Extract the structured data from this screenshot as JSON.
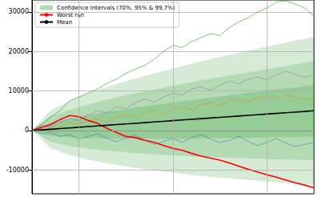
{
  "chart_data": {
    "type": "line",
    "legend": "upper left",
    "grid": true,
    "tick_labels": "y",
    "xlim": [
      0,
      300
    ],
    "xticks": [
      50,
      150,
      250
    ],
    "ylim": [
      -16000,
      33000
    ],
    "yticks": [
      -10000,
      0,
      10000,
      20000,
      30000
    ],
    "x": [
      0,
      10,
      20,
      30,
      40,
      50,
      60,
      70,
      80,
      90,
      100,
      110,
      120,
      130,
      140,
      150,
      160,
      170,
      180,
      190,
      200,
      210,
      220,
      230,
      240,
      250,
      260,
      270,
      280,
      290,
      300
    ],
    "series": [
      {
        "color": "#ff7f0e",
        "values": [
          0,
          500,
          -300,
          1000,
          2000,
          1500,
          2500,
          3000,
          2200,
          3500,
          4000,
          3200,
          4500,
          5000,
          4200,
          5500,
          6000,
          5200,
          6500,
          7000,
          6200,
          7500,
          8000,
          7000,
          8500,
          7800,
          8200,
          9000,
          8500,
          7800,
          8000
        ]
      },
      {
        "color": "#1f77b4",
        "values": [
          0,
          -800,
          -500,
          -1500,
          -1000,
          -2200,
          -1500,
          -800,
          -2000,
          -2800,
          -2000,
          -1200,
          -2500,
          -3500,
          -2800,
          -2000,
          -3000,
          -1800,
          -1000,
          -2200,
          -3000,
          -2500,
          -1500,
          -2800,
          -3800,
          -3000,
          -2000,
          -3200,
          -4000,
          -3500,
          -3000
        ]
      },
      {
        "color": "#9467bd",
        "values": [
          0,
          1200,
          800,
          2000,
          3000,
          2500,
          4000,
          5000,
          4500,
          6000,
          5500,
          7000,
          8000,
          7200,
          8500,
          9500,
          9000,
          10500,
          11000,
          10200,
          11500,
          12500,
          11800,
          13000,
          13500,
          12800,
          14000,
          15000,
          14200,
          13500,
          14000
        ]
      },
      {
        "name": "Worst run",
        "color": "#ff0000",
        "values": [
          0,
          800,
          1500,
          2800,
          3800,
          3500,
          2500,
          1800,
          500,
          -500,
          -1500,
          -1800,
          -2500,
          -3000,
          -3800,
          -4500,
          -5000,
          -5800,
          -6500,
          -7000,
          -7500,
          -8200,
          -9000,
          -9800,
          -10500,
          -11200,
          -11800,
          -12500,
          -13200,
          -13800,
          -14500
        ]
      },
      {
        "name": "Mean",
        "color": "#000000",
        "values": [
          0,
          167,
          333,
          500,
          667,
          833,
          1000,
          1167,
          1333,
          1500,
          1667,
          1833,
          2000,
          2167,
          2333,
          2500,
          2667,
          2833,
          3000,
          3167,
          3333,
          3500,
          3667,
          3833,
          4000,
          4167,
          4333,
          4500,
          4667,
          4833,
          5000
        ]
      },
      {
        "color": "#008000",
        "values": [
          0,
          1500,
          3500,
          5000,
          7500,
          8500,
          9500,
          10500,
          12000,
          13000,
          14500,
          15500,
          16500,
          18000,
          20000,
          21500,
          21000,
          22500,
          23500,
          24500,
          24000,
          26000,
          27500,
          28500,
          30000,
          31000,
          32500,
          32800,
          32000,
          31000,
          28800
        ]
      }
    ],
    "confidence_intervals": {
      "name": "Confidence Intervals (70%, 95% & 99.7%)",
      "color": "#008000",
      "x": [
        0,
        20,
        40,
        60,
        80,
        100,
        120,
        140,
        160,
        180,
        200,
        220,
        240,
        260,
        280,
        300
      ],
      "bands": [
        {
          "lower": [
            0,
            -4500,
            -6200,
            -7400,
            -8300,
            -9100,
            -9800,
            -10400,
            -11000,
            -11500,
            -11900,
            -12300,
            -12700,
            -13100,
            -13400,
            -13700
          ],
          "upper": [
            0,
            5200,
            7500,
            9400,
            11000,
            12500,
            13800,
            15100,
            16300,
            17500,
            18600,
            19700,
            20700,
            21700,
            22700,
            23700
          ]
        },
        {
          "lower": [
            0,
            -2900,
            -3900,
            -4600,
            -5100,
            -5500,
            -5900,
            -6200,
            -6400,
            -6700,
            -6800,
            -7000,
            -7100,
            -7300,
            -7400,
            -7500
          ],
          "upper": [
            0,
            3600,
            5200,
            6600,
            7800,
            8900,
            9900,
            10800,
            11800,
            12700,
            13500,
            14300,
            15100,
            15900,
            16700,
            17500
          ]
        },
        {
          "lower": [
            0,
            -1300,
            -1700,
            -1900,
            -2000,
            -2100,
            -2100,
            -2100,
            -2100,
            -2000,
            -2000,
            -1900,
            -1800,
            -1700,
            -1600,
            -1500
          ],
          "upper": [
            0,
            2000,
            3000,
            3900,
            4700,
            5400,
            6100,
            6800,
            7400,
            8000,
            8600,
            9200,
            9800,
            10400,
            10900,
            11500
          ]
        }
      ]
    }
  }
}
